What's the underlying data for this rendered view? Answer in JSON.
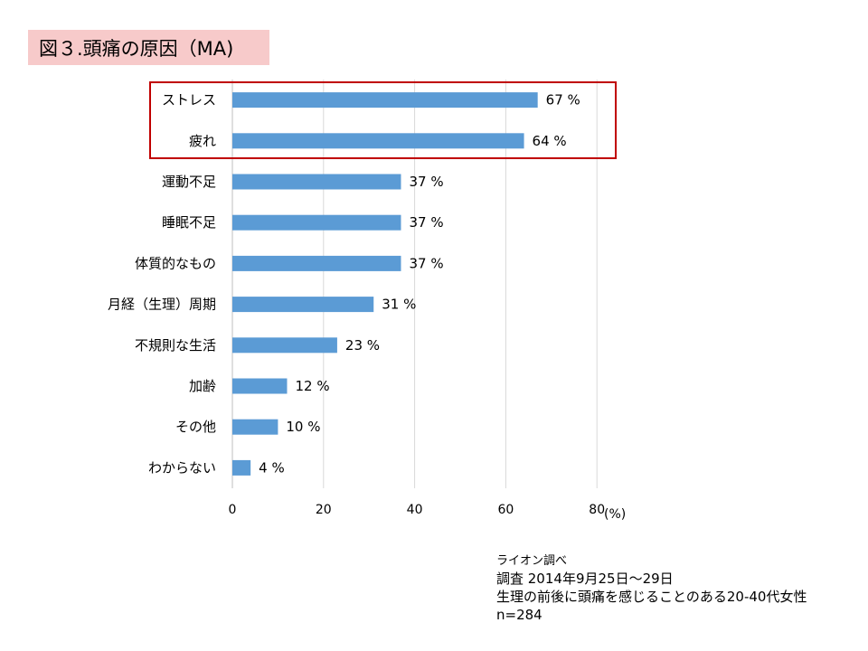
{
  "title": "図３.頭痛の原因（MA)",
  "chart_data": {
    "type": "bar",
    "orientation": "horizontal",
    "categories": [
      "ストレス",
      "疲れ",
      "運動不足",
      "睡眠不足",
      "体質的なもの",
      "月経（生理）周期",
      "不規則な生活",
      "加齢",
      "その他",
      "わからない"
    ],
    "values": [
      67,
      64,
      37,
      37,
      37,
      31,
      23,
      12,
      10,
      4
    ],
    "data_labels": [
      "67 %",
      "64 %",
      "37 %",
      "37 %",
      "37 %",
      "31 %",
      "23 %",
      "12 %",
      "10 %",
      "4 %"
    ],
    "xlim": [
      0,
      80
    ],
    "x_ticks": [
      "0",
      "20",
      "40",
      "60",
      "80"
    ],
    "x_unit": "(%)",
    "grid": true,
    "bar_color": "#5b9bd5",
    "highlight_color": "#c00000",
    "highlighted_categories": [
      "ストレス",
      "疲れ"
    ]
  },
  "notes": {
    "source": "ライオン調べ",
    "survey": "調査  2014年9月25日～29日",
    "target": "生理の前後に頭痛を感じることのある20-40代女性",
    "n": "n=284"
  }
}
